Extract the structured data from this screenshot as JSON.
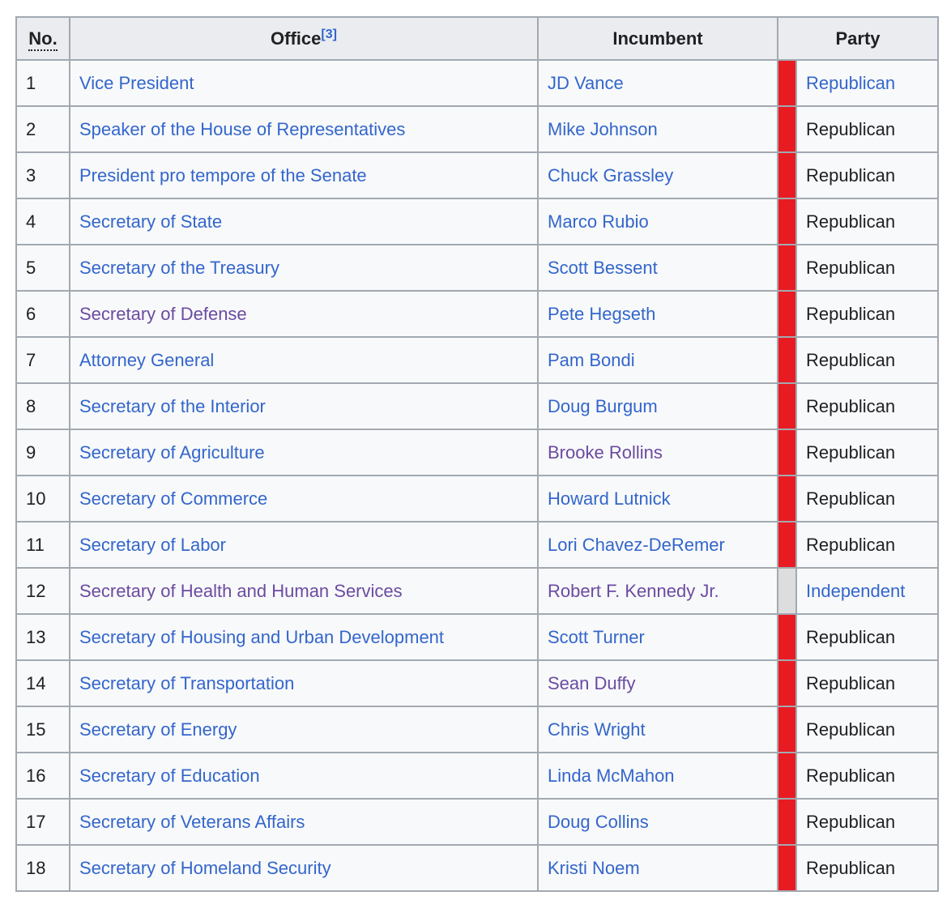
{
  "table": {
    "headers": {
      "no": "No.",
      "office": "Office",
      "office_ref": "[3]",
      "incumbent": "Incumbent",
      "party": "Party"
    },
    "colors": {
      "header_bg": "#eaecf0",
      "row_bg": "#f8f9fa",
      "border": "#a2a9b1",
      "link_blue": "#3366cc",
      "visited_purple": "#6b4ba1",
      "text": "#202122",
      "republican_red": "#E81B23",
      "independent_gray": "#DDDDDD"
    },
    "rows": [
      {
        "no": "1",
        "office": "Vice President",
        "office_visited": false,
        "incumbent": "JD Vance",
        "incumbent_visited": false,
        "party": "Republican",
        "party_color": "#E81B23",
        "party_is_link": true
      },
      {
        "no": "2",
        "office": "Speaker of the House of Representatives",
        "office_visited": false,
        "incumbent": "Mike Johnson",
        "incumbent_visited": false,
        "party": "Republican",
        "party_color": "#E81B23",
        "party_is_link": false
      },
      {
        "no": "3",
        "office": "President pro tempore of the Senate",
        "office_visited": false,
        "incumbent": "Chuck Grassley",
        "incumbent_visited": false,
        "party": "Republican",
        "party_color": "#E81B23",
        "party_is_link": false
      },
      {
        "no": "4",
        "office": "Secretary of State",
        "office_visited": false,
        "incumbent": "Marco Rubio",
        "incumbent_visited": false,
        "party": "Republican",
        "party_color": "#E81B23",
        "party_is_link": false
      },
      {
        "no": "5",
        "office": "Secretary of the Treasury",
        "office_visited": false,
        "incumbent": "Scott Bessent",
        "incumbent_visited": false,
        "party": "Republican",
        "party_color": "#E81B23",
        "party_is_link": false
      },
      {
        "no": "6",
        "office": "Secretary of Defense",
        "office_visited": true,
        "incumbent": "Pete Hegseth",
        "incumbent_visited": false,
        "party": "Republican",
        "party_color": "#E81B23",
        "party_is_link": false
      },
      {
        "no": "7",
        "office": "Attorney General",
        "office_visited": false,
        "incumbent": "Pam Bondi",
        "incumbent_visited": false,
        "party": "Republican",
        "party_color": "#E81B23",
        "party_is_link": false
      },
      {
        "no": "8",
        "office": "Secretary of the Interior",
        "office_visited": false,
        "incumbent": "Doug Burgum",
        "incumbent_visited": false,
        "party": "Republican",
        "party_color": "#E81B23",
        "party_is_link": false
      },
      {
        "no": "9",
        "office": "Secretary of Agriculture",
        "office_visited": false,
        "incumbent": "Brooke Rollins",
        "incumbent_visited": true,
        "party": "Republican",
        "party_color": "#E81B23",
        "party_is_link": false
      },
      {
        "no": "10",
        "office": "Secretary of Commerce",
        "office_visited": false,
        "incumbent": "Howard Lutnick",
        "incumbent_visited": false,
        "party": "Republican",
        "party_color": "#E81B23",
        "party_is_link": false
      },
      {
        "no": "11",
        "office": "Secretary of Labor",
        "office_visited": false,
        "incumbent": "Lori Chavez-DeRemer",
        "incumbent_visited": false,
        "party": "Republican",
        "party_color": "#E81B23",
        "party_is_link": false
      },
      {
        "no": "12",
        "office": "Secretary of Health and Human Services",
        "office_visited": true,
        "incumbent": "Robert F. Kennedy Jr.",
        "incumbent_visited": true,
        "party": "Independent",
        "party_color": "#DDDDDD",
        "party_is_link": true
      },
      {
        "no": "13",
        "office": "Secretary of Housing and Urban Development",
        "office_visited": false,
        "incumbent": "Scott Turner",
        "incumbent_visited": false,
        "party": "Republican",
        "party_color": "#E81B23",
        "party_is_link": false
      },
      {
        "no": "14",
        "office": "Secretary of Transportation",
        "office_visited": false,
        "incumbent": "Sean Duffy",
        "incumbent_visited": true,
        "party": "Republican",
        "party_color": "#E81B23",
        "party_is_link": false
      },
      {
        "no": "15",
        "office": "Secretary of Energy",
        "office_visited": false,
        "incumbent": "Chris Wright",
        "incumbent_visited": false,
        "party": "Republican",
        "party_color": "#E81B23",
        "party_is_link": false
      },
      {
        "no": "16",
        "office": "Secretary of Education",
        "office_visited": false,
        "incumbent": "Linda McMahon",
        "incumbent_visited": false,
        "party": "Republican",
        "party_color": "#E81B23",
        "party_is_link": false
      },
      {
        "no": "17",
        "office": "Secretary of Veterans Affairs",
        "office_visited": false,
        "incumbent": "Doug Collins",
        "incumbent_visited": false,
        "party": "Republican",
        "party_color": "#E81B23",
        "party_is_link": false
      },
      {
        "no": "18",
        "office": "Secretary of Homeland Security",
        "office_visited": false,
        "incumbent": "Kristi Noem",
        "incumbent_visited": false,
        "party": "Republican",
        "party_color": "#E81B23",
        "party_is_link": false
      }
    ]
  }
}
